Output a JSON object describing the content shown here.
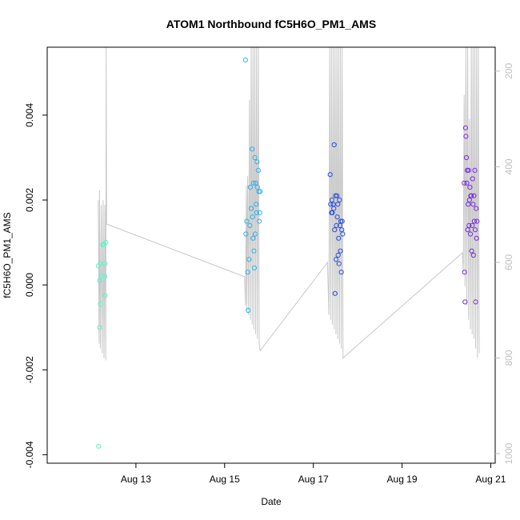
{
  "chart_data": {
    "type": "scatter",
    "title": "ATOM1 Northbound fC5H6O_PM1_AMS",
    "xlabel": "Date",
    "ylabel": "fC5H6O_PM1_AMS",
    "x_unit": "days since Aug 12 00:00",
    "xlim": [
      -1.0,
      9.1
    ],
    "ylim": [
      -0.0042,
      0.0056
    ],
    "x_ticks": [
      {
        "value": 1,
        "label": "Aug 13"
      },
      {
        "value": 3,
        "label": "Aug 15"
      },
      {
        "value": 5,
        "label": "Aug 17"
      },
      {
        "value": 7,
        "label": "Aug 19"
      },
      {
        "value": 9,
        "label": "Aug 21"
      }
    ],
    "y_ticks": [
      {
        "value": -0.004,
        "label": "-0.004"
      },
      {
        "value": -0.002,
        "label": "-0.002"
      },
      {
        "value": 0.0,
        "label": "0.000"
      },
      {
        "value": 0.002,
        "label": "0.002"
      },
      {
        "value": 0.004,
        "label": "0.004"
      }
    ],
    "secondary_axis": {
      "label": "",
      "ylim": [
        1020,
        150
      ],
      "ticks": [
        {
          "value": 200,
          "label": "200"
        },
        {
          "value": 400,
          "label": "400"
        },
        {
          "value": 600,
          "label": "600"
        },
        {
          "value": 800,
          "label": "800"
        },
        {
          "value": 1000,
          "label": "1000"
        }
      ],
      "color": "#bfbfbf"
    },
    "points": [
      {
        "x": 0.16,
        "y": -0.0038,
        "color": "#5ef5c8"
      },
      {
        "x": 0.18,
        "y": -0.001,
        "color": "#5ef5c8"
      },
      {
        "x": 0.15,
        "y": 0.00045,
        "color": "#5ef5c8"
      },
      {
        "x": 0.2,
        "y": 0.0005,
        "color": "#5ef5c8"
      },
      {
        "x": 0.18,
        "y": 0.0001,
        "color": "#5ef5c8"
      },
      {
        "x": 0.22,
        "y": 0.0002,
        "color": "#5ef5c8"
      },
      {
        "x": 0.2,
        "y": -0.00045,
        "color": "#5ef5c8"
      },
      {
        "x": 0.25,
        "y": 0.00095,
        "color": "#5ef5c8"
      },
      {
        "x": 0.28,
        "y": 0.00095,
        "color": "#5ef5c8"
      },
      {
        "x": 0.3,
        "y": 0.0005,
        "color": "#5ef5c8"
      },
      {
        "x": 0.3,
        "y": 0.0002,
        "color": "#5ef5c8"
      },
      {
        "x": 0.32,
        "y": 0.001,
        "color": "#5ef5c8"
      },
      {
        "x": 0.3,
        "y": -0.00025,
        "color": "#5ef5c8"
      },
      {
        "x": 3.47,
        "y": 0.0053,
        "color": "#2fb2ea"
      },
      {
        "x": 3.48,
        "y": 0.0012,
        "color": "#2fb2ea"
      },
      {
        "x": 3.5,
        "y": 0.0015,
        "color": "#2fb2ea"
      },
      {
        "x": 3.52,
        "y": 0.0003,
        "color": "#2fb2ea"
      },
      {
        "x": 3.53,
        "y": -0.0006,
        "color": "#2fb2ea"
      },
      {
        "x": 3.55,
        "y": 0.0006,
        "color": "#2fb2ea"
      },
      {
        "x": 3.57,
        "y": 0.0014,
        "color": "#2fb2ea"
      },
      {
        "x": 3.58,
        "y": 0.0023,
        "color": "#2fb2ea"
      },
      {
        "x": 3.6,
        "y": 0.0018,
        "color": "#2fb2ea"
      },
      {
        "x": 3.62,
        "y": 0.0032,
        "color": "#2fb2ea"
      },
      {
        "x": 3.63,
        "y": 0.0016,
        "color": "#2fb2ea"
      },
      {
        "x": 3.64,
        "y": 0.0011,
        "color": "#2fb2ea"
      },
      {
        "x": 3.65,
        "y": 0.0024,
        "color": "#2fb2ea"
      },
      {
        "x": 3.66,
        "y": 0.0008,
        "color": "#2fb2ea"
      },
      {
        "x": 3.67,
        "y": 0.0004,
        "color": "#2fb2ea"
      },
      {
        "x": 3.68,
        "y": 0.003,
        "color": "#2fb2ea"
      },
      {
        "x": 3.69,
        "y": 0.0012,
        "color": "#2fb2ea"
      },
      {
        "x": 3.7,
        "y": 0.0024,
        "color": "#2fb2ea"
      },
      {
        "x": 3.71,
        "y": 0.0019,
        "color": "#2fb2ea"
      },
      {
        "x": 3.72,
        "y": 0.0017,
        "color": "#2fb2ea"
      },
      {
        "x": 3.73,
        "y": 0.0029,
        "color": "#2fb2ea"
      },
      {
        "x": 3.74,
        "y": 0.0023,
        "color": "#2fb2ea"
      },
      {
        "x": 3.76,
        "y": 0.0027,
        "color": "#2fb2ea"
      },
      {
        "x": 3.77,
        "y": 0.0022,
        "color": "#2fb2ea"
      },
      {
        "x": 3.78,
        "y": 0.0015,
        "color": "#2fb2ea"
      },
      {
        "x": 3.79,
        "y": 0.0017,
        "color": "#2fb2ea"
      },
      {
        "x": 3.8,
        "y": 0.0022,
        "color": "#2fb2ea"
      },
      {
        "x": 5.38,
        "y": 0.0026,
        "color": "#2b4fdf"
      },
      {
        "x": 5.39,
        "y": 0.0019,
        "color": "#2b4fdf"
      },
      {
        "x": 5.41,
        "y": 0.0017,
        "color": "#2b4fdf"
      },
      {
        "x": 5.42,
        "y": 0.002,
        "color": "#2b4fdf"
      },
      {
        "x": 5.43,
        "y": 0.0017,
        "color": "#2b4fdf"
      },
      {
        "x": 5.45,
        "y": 0.0019,
        "color": "#2b4fdf"
      },
      {
        "x": 5.46,
        "y": 0.0018,
        "color": "#2b4fdf"
      },
      {
        "x": 5.47,
        "y": 0.0033,
        "color": "#2b4fdf"
      },
      {
        "x": 5.48,
        "y": 0.0013,
        "color": "#2b4fdf"
      },
      {
        "x": 5.49,
        "y": -0.0002,
        "color": "#2b4fdf"
      },
      {
        "x": 5.5,
        "y": 0.0021,
        "color": "#2b4fdf"
      },
      {
        "x": 5.51,
        "y": 0.0006,
        "color": "#2b4fdf"
      },
      {
        "x": 5.52,
        "y": 0.0014,
        "color": "#2b4fdf"
      },
      {
        "x": 5.53,
        "y": 0.0021,
        "color": "#2b4fdf"
      },
      {
        "x": 5.54,
        "y": 0.0016,
        "color": "#2b4fdf"
      },
      {
        "x": 5.55,
        "y": 0.0019,
        "color": "#2b4fdf"
      },
      {
        "x": 5.56,
        "y": 0.0007,
        "color": "#2b4fdf"
      },
      {
        "x": 5.57,
        "y": 0.0011,
        "color": "#2b4fdf"
      },
      {
        "x": 5.58,
        "y": 0.0005,
        "color": "#2b4fdf"
      },
      {
        "x": 5.59,
        "y": 0.002,
        "color": "#2b4fdf"
      },
      {
        "x": 5.6,
        "y": 0.0014,
        "color": "#2b4fdf"
      },
      {
        "x": 5.61,
        "y": 0.0008,
        "color": "#2b4fdf"
      },
      {
        "x": 5.62,
        "y": 0.0015,
        "color": "#2b4fdf"
      },
      {
        "x": 5.63,
        "y": 0.0003,
        "color": "#2b4fdf"
      },
      {
        "x": 5.64,
        "y": 0.0013,
        "color": "#2b4fdf"
      },
      {
        "x": 5.65,
        "y": 0.0015,
        "color": "#2b4fdf"
      },
      {
        "x": 5.66,
        "y": 0.0012,
        "color": "#2b4fdf"
      },
      {
        "x": 8.4,
        "y": 0.0024,
        "color": "#7a2be0"
      },
      {
        "x": 8.41,
        "y": 0.0003,
        "color": "#7a2be0"
      },
      {
        "x": 8.42,
        "y": -0.0004,
        "color": "#7a2be0"
      },
      {
        "x": 8.43,
        "y": 0.0037,
        "color": "#7a2be0"
      },
      {
        "x": 8.44,
        "y": 0.0035,
        "color": "#7a2be0"
      },
      {
        "x": 8.45,
        "y": 0.003,
        "color": "#7a2be0"
      },
      {
        "x": 8.46,
        "y": 0.0024,
        "color": "#7a2be0"
      },
      {
        "x": 8.47,
        "y": 0.0027,
        "color": "#7a2be0"
      },
      {
        "x": 8.48,
        "y": 0.0013,
        "color": "#7a2be0"
      },
      {
        "x": 8.49,
        "y": 0.0019,
        "color": "#7a2be0"
      },
      {
        "x": 8.5,
        "y": 0.0027,
        "color": "#7a2be0"
      },
      {
        "x": 8.51,
        "y": 0.0014,
        "color": "#7a2be0"
      },
      {
        "x": 8.52,
        "y": 0.002,
        "color": "#7a2be0"
      },
      {
        "x": 8.53,
        "y": 0.0023,
        "color": "#7a2be0"
      },
      {
        "x": 8.54,
        "y": 0.0012,
        "color": "#7a2be0"
      },
      {
        "x": 8.55,
        "y": 0.0021,
        "color": "#7a2be0"
      },
      {
        "x": 8.56,
        "y": 0.0021,
        "color": "#7a2be0"
      },
      {
        "x": 8.57,
        "y": 0.0008,
        "color": "#7a2be0"
      },
      {
        "x": 8.58,
        "y": 0.0014,
        "color": "#7a2be0"
      },
      {
        "x": 8.59,
        "y": 0.0025,
        "color": "#7a2be0"
      },
      {
        "x": 8.6,
        "y": 0.0019,
        "color": "#7a2be0"
      },
      {
        "x": 8.61,
        "y": 0.0007,
        "color": "#7a2be0"
      },
      {
        "x": 8.62,
        "y": 0.0021,
        "color": "#7a2be0"
      },
      {
        "x": 8.63,
        "y": 0.0015,
        "color": "#7a2be0"
      },
      {
        "x": 8.64,
        "y": 0.0027,
        "color": "#7a2be0"
      },
      {
        "x": 8.65,
        "y": 0.0013,
        "color": "#7a2be0"
      },
      {
        "x": 8.66,
        "y": -0.0004,
        "color": "#7a2be0"
      },
      {
        "x": 8.67,
        "y": 0.0018,
        "color": "#7a2be0"
      },
      {
        "x": 8.68,
        "y": 0.0011,
        "color": "#7a2be0"
      },
      {
        "x": 8.69,
        "y": 0.0015,
        "color": "#7a2be0"
      }
    ],
    "altitude_line": {
      "color": "#c8c8c8",
      "points": [
        [
          0.15,
          470
        ],
        [
          0.16,
          610
        ],
        [
          0.17,
          770
        ],
        [
          0.18,
          450
        ],
        [
          0.2,
          780
        ],
        [
          0.22,
          480
        ],
        [
          0.24,
          790
        ],
        [
          0.26,
          470
        ],
        [
          0.28,
          800
        ],
        [
          0.3,
          480
        ],
        [
          0.32,
          805
        ],
        [
          0.33,
          150
        ],
        [
          0.34,
          520
        ],
        [
          3.45,
          630
        ],
        [
          3.47,
          690
        ],
        [
          3.49,
          440
        ],
        [
          3.5,
          700
        ],
        [
          3.52,
          420
        ],
        [
          3.54,
          710
        ],
        [
          3.56,
          260
        ],
        [
          3.58,
          720
        ],
        [
          3.6,
          150
        ],
        [
          3.62,
          730
        ],
        [
          3.64,
          150
        ],
        [
          3.66,
          740
        ],
        [
          3.68,
          150
        ],
        [
          3.7,
          750
        ],
        [
          3.72,
          150
        ],
        [
          3.74,
          760
        ],
        [
          3.76,
          150
        ],
        [
          3.78,
          770
        ],
        [
          3.8,
          785
        ],
        [
          5.32,
          600
        ],
        [
          5.35,
          710
        ],
        [
          5.37,
          150
        ],
        [
          5.39,
          720
        ],
        [
          5.41,
          150
        ],
        [
          5.43,
          730
        ],
        [
          5.45,
          150
        ],
        [
          5.47,
          740
        ],
        [
          5.49,
          150
        ],
        [
          5.51,
          750
        ],
        [
          5.53,
          150
        ],
        [
          5.55,
          760
        ],
        [
          5.57,
          150
        ],
        [
          5.59,
          770
        ],
        [
          5.61,
          150
        ],
        [
          5.63,
          780
        ],
        [
          5.65,
          150
        ],
        [
          5.67,
          800
        ],
        [
          8.36,
          580
        ],
        [
          8.38,
          620
        ],
        [
          8.4,
          250
        ],
        [
          8.42,
          650
        ],
        [
          8.44,
          150
        ],
        [
          8.46,
          690
        ],
        [
          8.48,
          150
        ],
        [
          8.5,
          720
        ],
        [
          8.52,
          300
        ],
        [
          8.54,
          740
        ],
        [
          8.56,
          150
        ],
        [
          8.58,
          750
        ],
        [
          8.6,
          150
        ],
        [
          8.62,
          760
        ],
        [
          8.64,
          150
        ],
        [
          8.66,
          780
        ],
        [
          8.68,
          150
        ],
        [
          8.7,
          800
        ],
        [
          8.72,
          150
        ],
        [
          8.74,
          790
        ]
      ]
    }
  }
}
